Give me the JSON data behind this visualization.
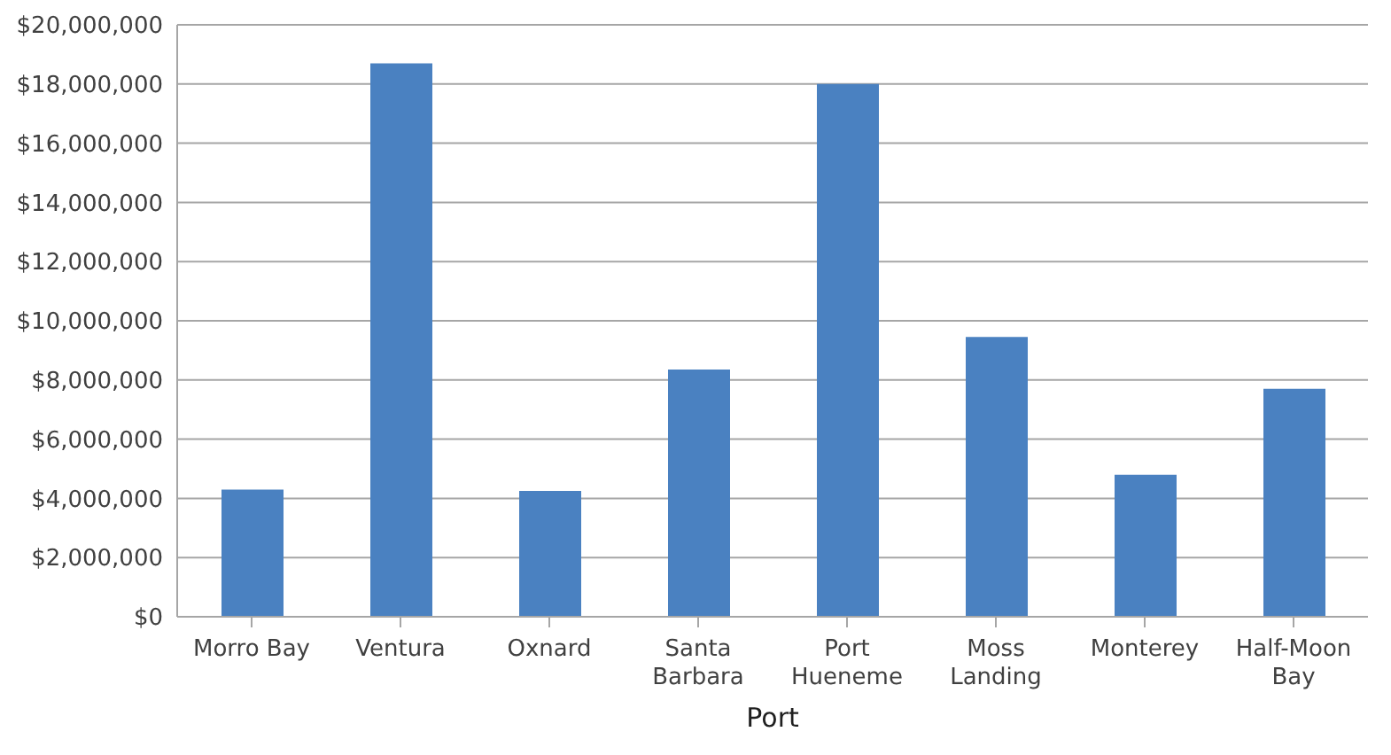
{
  "chart_data": {
    "type": "bar",
    "xlabel": "Port",
    "categories": [
      "Morro Bay",
      "Ventura",
      "Oxnard",
      "Santa Barbara",
      "Port Hueneme",
      "Moss Landing",
      "Monterey",
      "Half-Moon Bay"
    ],
    "values": [
      4300000,
      18700000,
      4250000,
      8350000,
      18000000,
      9450000,
      4800000,
      7700000
    ],
    "color": "#4a81c1",
    "ylim": [
      0,
      20000000
    ],
    "yticks": [
      {
        "value": 0,
        "label": "$0"
      },
      {
        "value": 2000000,
        "label": "$2,000,000"
      },
      {
        "value": 4000000,
        "label": "$4,000,000"
      },
      {
        "value": 6000000,
        "label": "$6,000,000"
      },
      {
        "value": 8000000,
        "label": "$8,000,000"
      },
      {
        "value": 10000000,
        "label": "$10,000,000"
      },
      {
        "value": 12000000,
        "label": "$12,000,000"
      },
      {
        "value": 14000000,
        "label": "$14,000,000"
      },
      {
        "value": 16000000,
        "label": "$16,000,000"
      },
      {
        "value": 18000000,
        "label": "$18,000,000"
      },
      {
        "value": 20000000,
        "label": "$20,000,000"
      }
    ],
    "grid": "y",
    "legend": false
  }
}
